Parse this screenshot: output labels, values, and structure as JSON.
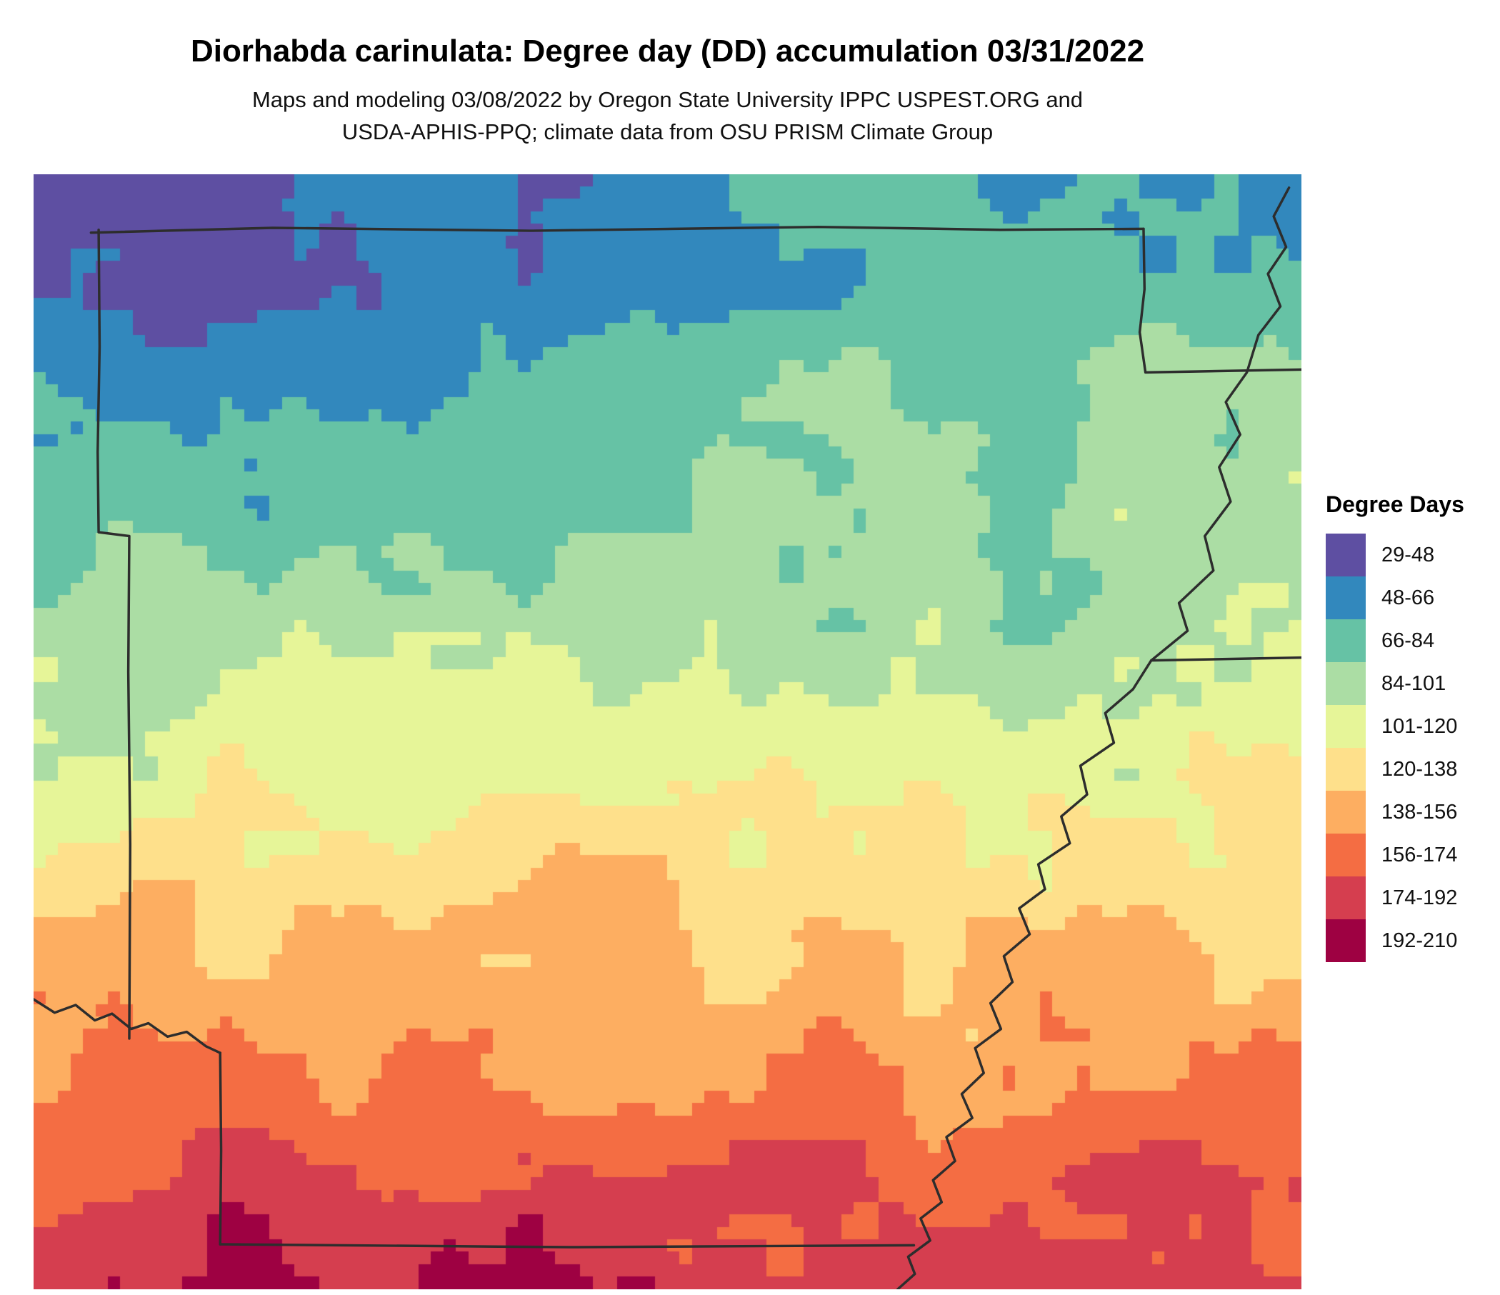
{
  "header": {
    "title": "Diorhabda carinulata: Degree day (DD) accumulation 03/31/2022",
    "subtitle_lines": [
      "Maps and modeling 03/08/2022 by Oregon State University IPPC USPEST.ORG and",
      "USDA-APHIS-PPQ; climate data from OSU PRISM Climate Group"
    ]
  },
  "legend": {
    "title": "Degree Days"
  },
  "chart_data": {
    "type": "heatmap",
    "title": "Diorhabda carinulata: Degree day (DD) accumulation 03/31/2022",
    "subtitle": "Maps and modeling 03/08/2022 by Oregon State University IPPC USPEST.ORG and USDA-APHIS-PPQ; climate data from OSU PRISM Climate Group",
    "legend_title": "Degree Days",
    "region": "Arkansas and adjacent states; state boundaries and Mississippi River shown as dark lines",
    "value_name": "Degree days (DD) accumulated through 03/31/2022",
    "value_range": [
      29,
      210
    ],
    "bands": [
      {
        "label": "29-48",
        "min": 29,
        "max": 48,
        "color": "#5e4fa2"
      },
      {
        "label": "48-66",
        "min": 48,
        "max": 66,
        "color": "#3288bd"
      },
      {
        "label": "66-84",
        "min": 66,
        "max": 84,
        "color": "#66c2a5"
      },
      {
        "label": "84-101",
        "min": 84,
        "max": 101,
        "color": "#abdda4"
      },
      {
        "label": "101-120",
        "min": 101,
        "max": 120,
        "color": "#e6f598"
      },
      {
        "label": "120-138",
        "min": 120,
        "max": 138,
        "color": "#fee08b"
      },
      {
        "label": "138-156",
        "min": 138,
        "max": 156,
        "color": "#fdae61"
      },
      {
        "label": "156-174",
        "min": 156,
        "max": 174,
        "color": "#f46d43"
      },
      {
        "label": "174-192",
        "min": 174,
        "max": 192,
        "color": "#d53e4f"
      },
      {
        "label": "192-210",
        "min": 192,
        "max": 210,
        "color": "#9e0142"
      }
    ],
    "spatial_pattern": "Lowest accumulations (purple/blue, 29-66 DD) across the north, especially the northwest; greens (66-101) through the north-central and northeast; yellow-greens and pale yellows (101-138) across mid-state; oranges and reds (138-210) across the south with darkest reds along the bottom edge."
  }
}
